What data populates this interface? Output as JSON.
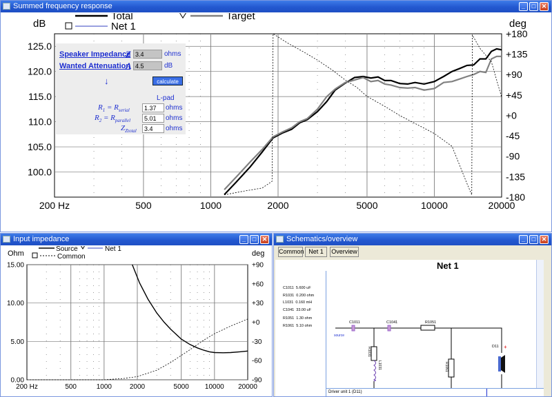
{
  "windows": {
    "summed": {
      "title": "Summed frequency response",
      "y_unit": "dB",
      "y2_unit": "deg",
      "legend": {
        "total": "Total",
        "net1": "Net 1",
        "target": "Target"
      },
      "y_ticks": [
        "125.0",
        "120.0",
        "115.0",
        "110.0",
        "105.0",
        "100.0"
      ],
      "y2_ticks": [
        "+180",
        "+135",
        "+90",
        "+45",
        "+0",
        "-45",
        "-90",
        "-135",
        "-180"
      ],
      "x_ticks": [
        "200 Hz",
        "500",
        "1000",
        "2000",
        "5000",
        "10000",
        "20000"
      ]
    },
    "impedance": {
      "title": "Input impedance",
      "y_unit": "Ohm",
      "y2_unit": "deg",
      "legend": {
        "source": "Source",
        "net1": "Net 1",
        "common": "Common"
      },
      "y_ticks": [
        "15.00",
        "10.00",
        "5.00",
        "0.00"
      ],
      "y2_ticks": [
        "+90",
        "+60",
        "+30",
        "+0",
        "-30",
        "-60",
        "-90"
      ],
      "x_ticks": [
        "200 Hz",
        "500",
        "1000",
        "2000",
        "5000",
        "10000",
        "20000"
      ]
    },
    "schematics": {
      "title": "Schematics/overview",
      "buttons": [
        "Common",
        "Net 1",
        "Overview"
      ],
      "heading": "Net 1",
      "parts": [
        "C1011  5.600 uF",
        "R1031  0.200 ohm",
        "L1031  0.160 mH",
        "C1041  33.00 uF",
        "R1051  1.30 ohm",
        "R1061  5.10 ohm"
      ],
      "labels": {
        "c1011": "C1011",
        "c1041": "C1041",
        "r1051": "R1051",
        "r1031": "R1031",
        "l1031": "L1031",
        "r1061": "R1061",
        "d11": "D11",
        "source": "source",
        "plus": "+"
      },
      "footer": "Driver unit 1 (D11)"
    }
  },
  "lpad": {
    "speaker_impedance_label": "Speaker Impedance",
    "speaker_impedance_symbol": "Z",
    "speaker_impedance_value": "3.4",
    "speaker_impedance_unit": "ohms",
    "attenuation_label": "Wanted Attenuation",
    "attenuation_symbol": "A",
    "attenuation_value": "4.5",
    "attenuation_unit": "dB",
    "arrow": "↓",
    "calculate_label": "calculate",
    "heading": "L-pad",
    "r1_label": "R1 = Rserial",
    "r1_value": "1.37",
    "r2_label": "R2 = Rparallel",
    "r2_value": "5.01",
    "ztotal_label": "Ztotal",
    "ztotal_value": "3.4",
    "unit_ohms": "ohms"
  },
  "chart_data": [
    {
      "type": "line",
      "x_scale": "log",
      "xlim": [
        200,
        20000
      ],
      "ylim": [
        95,
        127.5
      ],
      "y2lim": [
        -180,
        180
      ],
      "series": [
        {
          "name": "Total",
          "color": "#000000",
          "x": [
            1150,
            1300,
            1500,
            1700,
            1900,
            2100,
            2300,
            2500,
            2700,
            3000,
            3300,
            3600,
            4000,
            4400,
            4800,
            5200,
            5600,
            6000,
            6400,
            7000,
            7600,
            8200,
            9000,
            10000,
            11000,
            12000,
            13000,
            14000,
            15000,
            16000,
            17000,
            18000,
            19000,
            20000
          ],
          "y": [
            95.5,
            98,
            101,
            104,
            106.8,
            107.8,
            108.5,
            109.8,
            110.4,
            112,
            114,
            116.3,
            117.7,
            118.8,
            119,
            118.7,
            118.9,
            118.2,
            118.2,
            117.6,
            117.5,
            117.8,
            117.5,
            118,
            119,
            120,
            120.6,
            121.2,
            121.3,
            122.5,
            122.5,
            124,
            124.5,
            124.3
          ]
        },
        {
          "name": "Target",
          "color": "#808080",
          "x": [
            1150,
            1300,
            1500,
            1700,
            1900,
            2100,
            2300,
            2500,
            2700,
            3000,
            3300,
            3600,
            4000,
            4400,
            4800,
            5200,
            5600,
            6000,
            6400,
            7000,
            7600,
            8200,
            9000,
            10000,
            11000,
            12000,
            13000,
            14000,
            15000,
            16000,
            17000,
            18000,
            19000,
            20000
          ],
          "y": [
            96.5,
            99,
            102,
            104.5,
            107,
            108,
            108.8,
            110,
            110.6,
            112.5,
            115,
            116.5,
            117.8,
            118.3,
            118.8,
            118,
            118.2,
            117.5,
            117.3,
            116.8,
            116.7,
            116.8,
            116.3,
            116.6,
            117.8,
            118,
            118.5,
            119,
            119.4,
            120,
            119.8,
            122.5,
            123,
            123
          ]
        },
        {
          "name": "Phase",
          "color": "#000000",
          "axis": "y2",
          "x": [
            1150,
            1400,
            1700,
            1880,
            1900,
            2200,
            2600,
            3000,
            3500,
            4000,
            4500,
            5000,
            6000,
            7000,
            8000,
            9000,
            10000,
            12000,
            14000,
            14700,
            14800,
            16000,
            18000,
            20000
          ],
          "y": [
            -175,
            -167,
            -160,
            -145,
            180,
            160,
            140,
            122,
            100,
            78,
            62,
            42,
            20,
            0,
            -15,
            -28,
            -40,
            -68,
            -150,
            -175,
            177,
            148,
            118,
            40
          ]
        }
      ]
    },
    {
      "type": "line",
      "x_scale": "log",
      "xlim": [
        200,
        20000
      ],
      "ylim": [
        0,
        15
      ],
      "y2lim": [
        -90,
        90
      ],
      "series": [
        {
          "name": "Source",
          "color": "#000000",
          "x": [
            1800,
            2100,
            2500,
            3000,
            3500,
            4000,
            5000,
            6000,
            7000,
            8000,
            9000,
            10000,
            12000,
            14000,
            17000,
            20000
          ],
          "y": [
            15,
            12.6,
            10.5,
            8.7,
            7.5,
            6.6,
            5.3,
            4.6,
            4.15,
            3.85,
            3.65,
            3.55,
            3.52,
            3.55,
            3.65,
            3.75
          ]
        },
        {
          "name": "Phase",
          "color": "#000000",
          "axis": "y2",
          "x": [
            200,
            500,
            1000,
            1500,
            2000,
            3000,
            4000,
            5000,
            6000,
            8000,
            10000,
            14000,
            20000
          ],
          "y": [
            -90,
            -90,
            -90,
            -88,
            -85,
            -75,
            -63,
            -52,
            -43,
            -28,
            -18,
            -6,
            5
          ]
        }
      ]
    }
  ]
}
